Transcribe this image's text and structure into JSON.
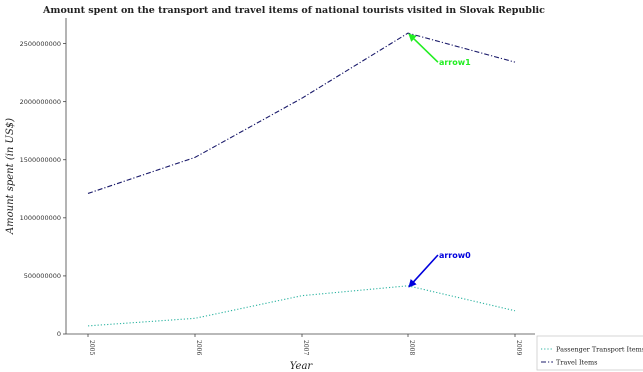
{
  "chart_data": {
    "type": "line",
    "title": "Amount spent on the transport and travel items of national tourists visited in Slovak Republic",
    "xlabel": "Year",
    "ylabel": "Amount spent (in US$)",
    "x": [
      "2005",
      "2006",
      "2007",
      "2008",
      "2009"
    ],
    "ylim": [
      0,
      2720000000
    ],
    "yticks": [
      0,
      500000000,
      1000000000,
      1500000000,
      2000000000,
      2500000000
    ],
    "ytick_labels": [
      "0",
      "500000000",
      "1000000000",
      "1500000000",
      "2000000000",
      "2500000000"
    ],
    "grid": false,
    "legend_position": "bottom-right",
    "series": [
      {
        "name": "Passenger Transport Items",
        "values": [
          70000000,
          135000000,
          330000000,
          415000000,
          200000000
        ],
        "color": "#2ab3a0",
        "style": "dotted"
      },
      {
        "name": "Travel Items",
        "values": [
          1210000000,
          1520000000,
          2030000000,
          2590000000,
          2340000000
        ],
        "color": "#1b1b6b",
        "style": "dashdot"
      }
    ],
    "annotations": [
      {
        "text": "arrow0",
        "color": "#0000dd",
        "target_x": "2008",
        "target_y": 415000000,
        "text_x": 2008.28,
        "text_y": 680000000
      },
      {
        "text": "arrow1",
        "color": "#22ee22",
        "target_x": "2008",
        "target_y": 2590000000,
        "text_x": 2008.28,
        "text_y": 2340000000
      }
    ]
  }
}
